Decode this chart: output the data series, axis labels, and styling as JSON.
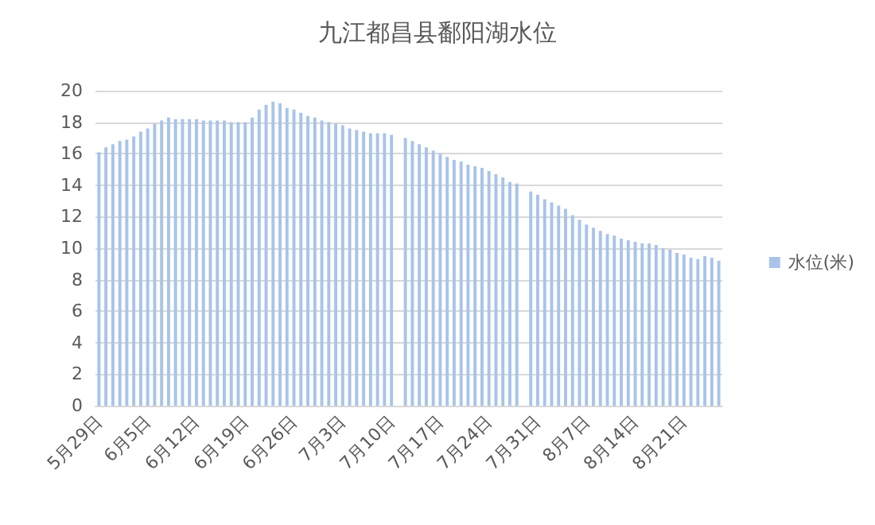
{
  "chart_data": {
    "type": "bar",
    "title": "九江都昌县鄱阳湖水位",
    "categories": [
      "5月29日",
      null,
      null,
      null,
      null,
      null,
      null,
      "6月5日",
      null,
      null,
      null,
      null,
      null,
      null,
      "6月12日",
      null,
      null,
      null,
      null,
      null,
      null,
      "6月19日",
      null,
      null,
      null,
      null,
      null,
      null,
      "6月26日",
      null,
      null,
      null,
      null,
      null,
      null,
      "7月3日",
      null,
      null,
      null,
      null,
      null,
      null,
      "7月10日",
      null,
      null,
      null,
      null,
      null,
      null,
      "7月17日",
      null,
      null,
      null,
      null,
      null,
      null,
      "7月24日",
      null,
      null,
      null,
      null,
      null,
      null,
      "7月31日",
      null,
      null,
      null,
      null,
      null,
      null,
      "8月7日",
      null,
      null,
      null,
      null,
      null,
      null,
      "8月14日",
      null,
      null,
      null,
      null,
      null,
      null,
      "8月21日",
      null,
      null,
      null,
      null,
      null
    ],
    "series": [
      {
        "name": "水位(米)",
        "color": "#a9c4e8",
        "values": [
          16.1,
          16.4,
          16.6,
          16.8,
          16.9,
          17.1,
          17.4,
          17.6,
          17.9,
          18.1,
          18.3,
          18.2,
          18.2,
          18.2,
          18.2,
          18.1,
          18.1,
          18.1,
          18.1,
          18.0,
          18.0,
          18.0,
          18.3,
          18.8,
          19.1,
          19.3,
          19.2,
          18.9,
          18.8,
          18.6,
          18.4,
          18.3,
          18.1,
          18.0,
          17.9,
          17.8,
          17.6,
          17.5,
          17.4,
          17.3,
          17.3,
          17.3,
          17.2,
          null,
          17.0,
          16.8,
          16.6,
          16.4,
          16.2,
          16.0,
          15.8,
          15.6,
          15.5,
          15.3,
          15.2,
          15.1,
          14.9,
          14.7,
          14.5,
          14.2,
          14.1,
          null,
          13.6,
          13.4,
          13.1,
          12.9,
          12.7,
          12.5,
          12.1,
          11.8,
          11.5,
          11.3,
          11.1,
          10.9,
          10.8,
          10.6,
          10.5,
          10.4,
          10.3,
          10.3,
          10.2,
          10.0,
          9.9,
          9.7,
          9.6,
          9.4,
          9.3,
          9.5,
          9.4,
          9.2
        ]
      }
    ],
    "ylim": [
      0,
      20
    ],
    "yticks": [
      0,
      2,
      4,
      6,
      8,
      10,
      12,
      14,
      16,
      18,
      20
    ],
    "grid": "y",
    "legend": "right"
  }
}
